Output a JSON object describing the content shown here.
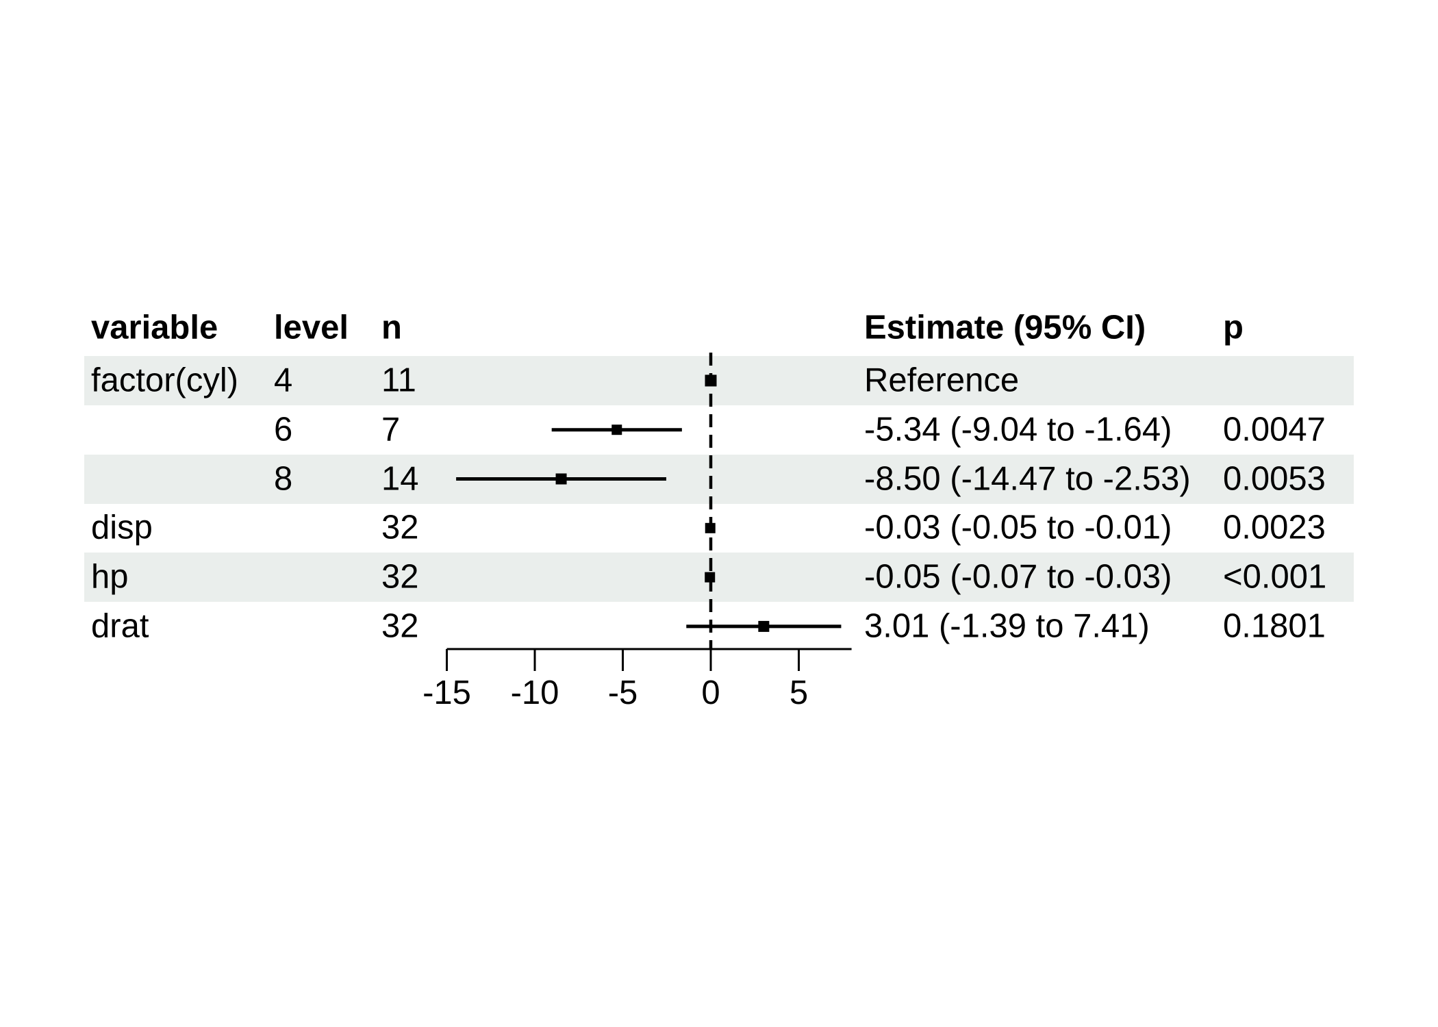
{
  "figure": {
    "background": "#FFFFFF",
    "text_color": "#000000"
  },
  "table": {
    "headers": [
      {
        "key": "variable",
        "label": "variable"
      },
      {
        "key": "level",
        "label": "level"
      },
      {
        "key": "n",
        "label": "n"
      },
      {
        "key": "estimate",
        "label": "Estimate (95% CI)"
      },
      {
        "key": "p",
        "label": "p"
      }
    ],
    "rows": [
      {
        "variable": "factor(cyl)",
        "level": "4",
        "n": "11",
        "estimate": "Reference",
        "p": "",
        "striped": true
      },
      {
        "variable": "",
        "level": "6",
        "n": "7",
        "estimate": "-5.34 (-9.04 to -1.64)",
        "p": "0.0047",
        "striped": false
      },
      {
        "variable": "",
        "level": "8",
        "n": "14",
        "estimate": "-8.50 (-14.47 to -2.53)",
        "p": "0.0053",
        "striped": true
      },
      {
        "variable": "disp",
        "level": "",
        "n": "32",
        "estimate": "-0.03 (-0.05 to -0.01)",
        "p": "0.0023",
        "striped": false
      },
      {
        "variable": "hp",
        "level": "",
        "n": "32",
        "estimate": "-0.05 (-0.07 to -0.03)",
        "p": "<0.001",
        "striped": true
      },
      {
        "variable": "drat",
        "level": "",
        "n": "32",
        "estimate": "3.01 (-1.39 to 7.41)",
        "p": "0.1801",
        "striped": false
      }
    ]
  },
  "chart_data": {
    "type": "forest",
    "title": "",
    "xlabel": "",
    "x_ticks": [
      -15,
      -10,
      -5,
      0,
      5
    ],
    "xlim": [
      -15,
      8
    ],
    "reference_line_x": 0,
    "grid": false,
    "legend": null,
    "rows": [
      {
        "variable": "factor(cyl)",
        "level": "4",
        "n": 11,
        "estimate": 0,
        "ci_low": null,
        "ci_high": null,
        "reference": true,
        "p": null,
        "marker_size": 17
      },
      {
        "variable": "factor(cyl)",
        "level": "6",
        "n": 7,
        "estimate": -5.34,
        "ci_low": -9.04,
        "ci_high": -1.64,
        "reference": false,
        "p": "0.0047",
        "marker_size": 15
      },
      {
        "variable": "factor(cyl)",
        "level": "8",
        "n": 14,
        "estimate": -8.5,
        "ci_low": -14.47,
        "ci_high": -2.53,
        "reference": false,
        "p": "0.0053",
        "marker_size": 16
      },
      {
        "variable": "disp",
        "level": null,
        "n": 32,
        "estimate": -0.03,
        "ci_low": -0.05,
        "ci_high": -0.01,
        "reference": false,
        "p": "0.0023",
        "marker_size": 15
      },
      {
        "variable": "hp",
        "level": null,
        "n": 32,
        "estimate": -0.05,
        "ci_low": -0.07,
        "ci_high": -0.03,
        "reference": false,
        "p": "<0.001",
        "marker_size": 15
      },
      {
        "variable": "drat",
        "level": null,
        "n": 32,
        "estimate": 3.01,
        "ci_low": -1.39,
        "ci_high": 7.41,
        "reference": false,
        "p": "0.1801",
        "marker_size": 16
      }
    ],
    "colors": {
      "marker": "#000000",
      "ci_line": "#000000",
      "axis": "#000000",
      "reference_line": "#000000",
      "stripe": "#EAEEEC"
    }
  }
}
